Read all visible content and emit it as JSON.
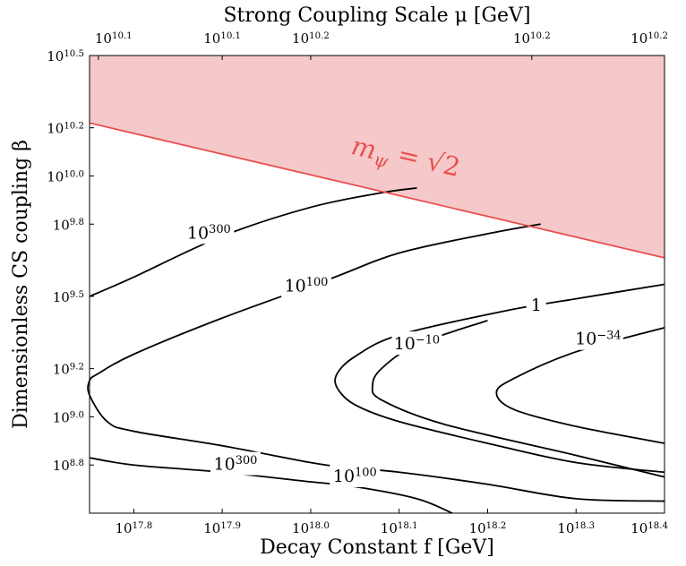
{
  "chart_data": {
    "type": "contour",
    "xlabel": "Decay Constant f [GeV]",
    "ylabel": "Dimensionless CS coupling β",
    "top_xlabel": "Strong Coupling Scale μ [GeV]",
    "log_scale": true,
    "grid": false,
    "xlim_exponent": [
      17.75,
      18.4
    ],
    "ylim_exponent": [
      8.6,
      10.5
    ],
    "x_ticks": [
      {
        "value": 17.8,
        "base": "10",
        "exp": "17.8"
      },
      {
        "value": 17.9,
        "base": "10",
        "exp": "17.9"
      },
      {
        "value": 18.0,
        "base": "10",
        "exp": "18.0"
      },
      {
        "value": 18.1,
        "base": "10",
        "exp": "18.1"
      },
      {
        "value": 18.2,
        "base": "10",
        "exp": "18.2"
      },
      {
        "value": 18.3,
        "base": "10",
        "exp": "18.3"
      },
      {
        "value": 18.4,
        "base": "10",
        "exp": "18.4"
      }
    ],
    "y_ticks": [
      {
        "value": 10.5,
        "base": "10",
        "exp": "10.5"
      },
      {
        "value": 10.2,
        "base": "10",
        "exp": "10.2"
      },
      {
        "value": 10.0,
        "base": "10",
        "exp": "10.0"
      },
      {
        "value": 9.8,
        "base": "10",
        "exp": "9.8"
      },
      {
        "value": 9.5,
        "base": "10",
        "exp": "9.5"
      },
      {
        "value": 9.2,
        "base": "10",
        "exp": "9.2"
      },
      {
        "value": 9.0,
        "base": "10",
        "exp": "9.0"
      },
      {
        "value": 8.8,
        "base": "10",
        "exp": "8.8"
      }
    ],
    "top_ticks": [
      {
        "x_value": 17.76,
        "base": "10",
        "exp": "10.1"
      },
      {
        "x_value": 17.9,
        "base": "10",
        "exp": "10.1"
      },
      {
        "x_value": 18.0,
        "base": "10",
        "exp": "10.2"
      },
      {
        "x_value": 18.25,
        "base": "10",
        "exp": "10.2"
      },
      {
        "x_value": 18.4,
        "base": "10",
        "exp": "10.2"
      }
    ],
    "boundary": {
      "label_main": "m",
      "label_sub": "ψ",
      "label_rest": "= √2",
      "color": "#e8504e",
      "fill_color": "#f5c9ca",
      "points": [
        [
          17.75,
          10.22
        ],
        [
          18.4,
          9.66
        ]
      ],
      "label_at": [
        18.105,
        10.04
      ]
    },
    "contours": [
      {
        "label": "",
        "label_base": "10",
        "label_exp": "300",
        "label_at": [
          17.885,
          9.74
        ],
        "points": [
          [
            17.75,
            9.5
          ],
          [
            17.8,
            9.58
          ],
          [
            17.9,
            9.75
          ],
          [
            18.0,
            9.87
          ],
          [
            18.08,
            9.93
          ],
          [
            18.12,
            9.95
          ]
        ]
      },
      {
        "label": "",
        "label_base": "10",
        "label_exp": "100",
        "label_at": [
          17.995,
          9.52
        ],
        "points": [
          [
            18.26,
            9.8
          ],
          [
            18.2,
            9.76
          ],
          [
            18.1,
            9.68
          ],
          [
            18.02,
            9.57
          ],
          [
            17.9,
            9.41
          ],
          [
            17.8,
            9.26
          ],
          [
            17.76,
            9.18
          ],
          [
            17.75,
            9.15
          ],
          [
            17.75,
            9.09
          ],
          [
            17.77,
            8.98
          ],
          [
            17.8,
            8.94
          ],
          [
            17.9,
            8.88
          ],
          [
            18.0,
            8.81
          ],
          [
            18.04,
            8.79
          ],
          [
            18.1,
            8.77
          ],
          [
            18.2,
            8.72
          ],
          [
            18.3,
            8.66
          ],
          [
            18.4,
            8.65
          ]
        ]
      },
      {
        "label": "1",
        "label_base": "",
        "label_exp": "",
        "label_at": [
          18.255,
          9.44
        ],
        "points": [
          [
            18.4,
            9.55
          ],
          [
            18.3,
            9.49
          ],
          [
            18.22,
            9.44
          ],
          [
            18.1,
            9.34
          ],
          [
            18.05,
            9.25
          ],
          [
            18.03,
            9.18
          ],
          [
            18.03,
            9.12
          ],
          [
            18.05,
            9.05
          ],
          [
            18.1,
            8.98
          ],
          [
            18.2,
            8.89
          ],
          [
            18.3,
            8.81
          ],
          [
            18.4,
            8.77
          ]
        ]
      },
      {
        "label": "",
        "label_base": "10",
        "label_exp": "−10",
        "label_at": [
          18.12,
          9.28
        ],
        "points": [
          [
            18.2,
            9.4
          ],
          [
            18.12,
            9.3
          ],
          [
            18.08,
            9.2
          ],
          [
            18.07,
            9.13
          ],
          [
            18.08,
            9.07
          ],
          [
            18.15,
            8.97
          ],
          [
            18.3,
            8.84
          ],
          [
            18.4,
            8.75
          ]
        ]
      },
      {
        "label": "",
        "label_base": "10",
        "label_exp": "−34",
        "label_at": [
          18.325,
          9.3
        ],
        "points": [
          [
            18.4,
            9.37
          ],
          [
            18.3,
            9.27
          ],
          [
            18.23,
            9.16
          ],
          [
            18.21,
            9.1
          ],
          [
            18.23,
            9.03
          ],
          [
            18.3,
            8.96
          ],
          [
            18.4,
            8.89
          ]
        ]
      },
      {
        "label": "",
        "label_base": "10",
        "label_exp": "300",
        "label_at": [
          17.915,
          8.78
        ],
        "points": [
          [
            17.75,
            8.83
          ],
          [
            17.8,
            8.8
          ],
          [
            17.9,
            8.77
          ],
          [
            18.0,
            8.73
          ],
          [
            18.05,
            8.71
          ],
          [
            18.12,
            8.66
          ],
          [
            18.16,
            8.6
          ]
        ]
      }
    ],
    "contour_label_extra": [
      {
        "label": "",
        "label_base": "10",
        "label_exp": "100",
        "label_at": [
          18.05,
          8.73
        ]
      }
    ]
  }
}
